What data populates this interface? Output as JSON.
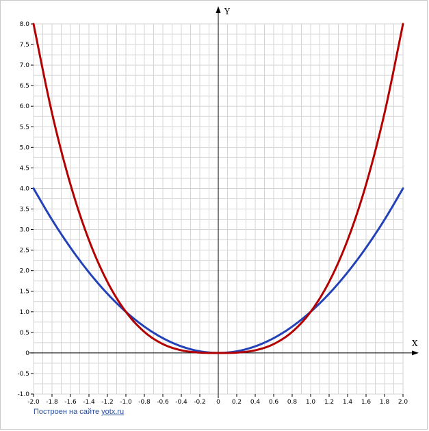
{
  "chart_data": {
    "type": "line",
    "xlim": [
      -2.0,
      2.0
    ],
    "ylim": [
      -1.0,
      8.0
    ],
    "x_ticks": [
      "-2.0",
      "-1.8",
      "-1.6",
      "-1.4",
      "-1.2",
      "-1.0",
      "-0.8",
      "-0.6",
      "-0.4",
      "-0.2",
      "0",
      "0.2",
      "0.4",
      "0.6",
      "0.8",
      "1.0",
      "1.2",
      "1.4",
      "1.6",
      "1.8",
      "2.0"
    ],
    "y_ticks": [
      "-1.0",
      "-0.5",
      "0",
      "0.5",
      "1.0",
      "1.5",
      "2.0",
      "2.5",
      "3.0",
      "3.5",
      "4.0",
      "4.5",
      "5.0",
      "5.5",
      "6.0",
      "6.5",
      "7.0",
      "7.5",
      "8.0"
    ],
    "xlabel": "X",
    "ylabel": "Y",
    "grid": true,
    "series": [
      {
        "color": "#2342b8",
        "x": [
          -2.0,
          -1.8,
          -1.6,
          -1.4,
          -1.2,
          -1.0,
          -0.8,
          -0.6,
          -0.4,
          -0.2,
          0,
          0.2,
          0.4,
          0.6,
          0.8,
          1.0,
          1.2,
          1.4,
          1.6,
          1.8,
          2.0
        ],
        "y": [
          4.0,
          3.24,
          2.56,
          1.96,
          1.44,
          1.0,
          0.64,
          0.36,
          0.16,
          0.04,
          0,
          0.04,
          0.16,
          0.36,
          0.64,
          1.0,
          1.44,
          1.96,
          2.56,
          3.24,
          4.0
        ]
      },
      {
        "color": "#b30000",
        "x": [
          -2.0,
          -1.8,
          -1.6,
          -1.4,
          -1.2,
          -1.0,
          -0.8,
          -0.6,
          -0.4,
          -0.2,
          0,
          0.2,
          0.4,
          0.6,
          0.8,
          1.0,
          1.2,
          1.4,
          1.6,
          1.8,
          2.0
        ],
        "y": [
          8.0,
          5.832,
          4.096,
          2.744,
          1.728,
          1.0,
          0.512,
          0.216,
          0.064,
          0.008,
          0,
          0.008,
          0.064,
          0.216,
          0.512,
          1.0,
          1.728,
          2.744,
          4.096,
          5.832,
          8.0
        ]
      }
    ]
  },
  "footer": {
    "text": "Построен на сайте",
    "link": "yotx.ru"
  },
  "colors": {
    "grid": "#d4d4d4",
    "axis": "#000000",
    "frame": "#c8c8c8"
  }
}
